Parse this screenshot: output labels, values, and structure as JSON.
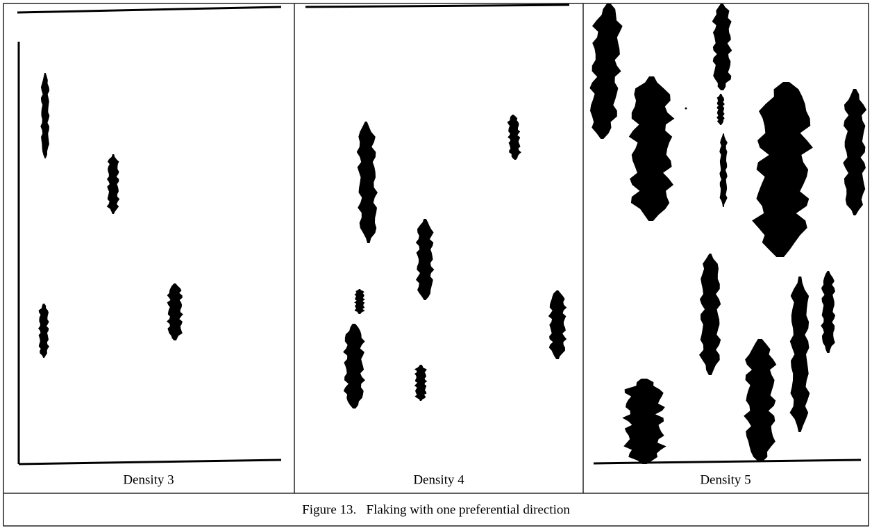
{
  "panels": [
    {
      "label": "Density 3"
    },
    {
      "label": "Density 4"
    },
    {
      "label": "Density 5"
    }
  ],
  "caption": "Figure 13.   Flaking with one preferential direction"
}
